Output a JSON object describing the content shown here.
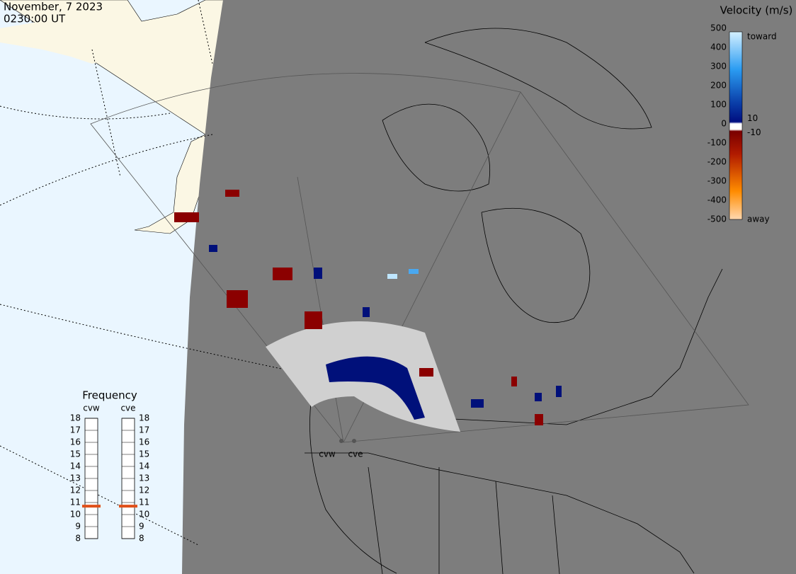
{
  "header": {
    "date": "November, 7 2023",
    "time": "0230:00 UT"
  },
  "velocity_scale": {
    "title": "Velocity (m/s)",
    "ticks": [
      500,
      400,
      300,
      200,
      100,
      0,
      -100,
      -200,
      -300,
      -400,
      -500
    ],
    "inner_ticks": [
      10,
      -10
    ],
    "toward_label": "toward",
    "away_label": "away"
  },
  "frequency": {
    "title": "Frequency",
    "ticks": [
      8,
      9,
      10,
      11,
      12,
      13,
      14,
      15,
      16,
      17,
      18
    ],
    "radars": [
      {
        "name": "cvw",
        "frequency_mhz": 10.7
      },
      {
        "name": "cve",
        "frequency_mhz": 10.7
      }
    ]
  },
  "sites": [
    "cvw",
    "cve"
  ]
}
